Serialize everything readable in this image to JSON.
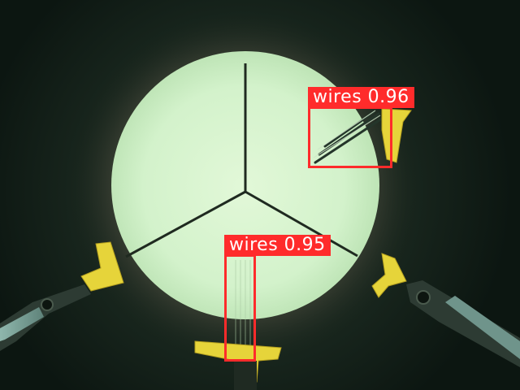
{
  "image": {
    "description_kind": "microscope-detection",
    "colors": {
      "background": "#0f1a14",
      "aperture": "#d6f4cd",
      "pad": "#e6d43a",
      "box": "#ff2b2b"
    }
  },
  "detections": [
    {
      "label": "wires",
      "score": "0.96"
    },
    {
      "label": "wires",
      "score": "0.95"
    }
  ]
}
